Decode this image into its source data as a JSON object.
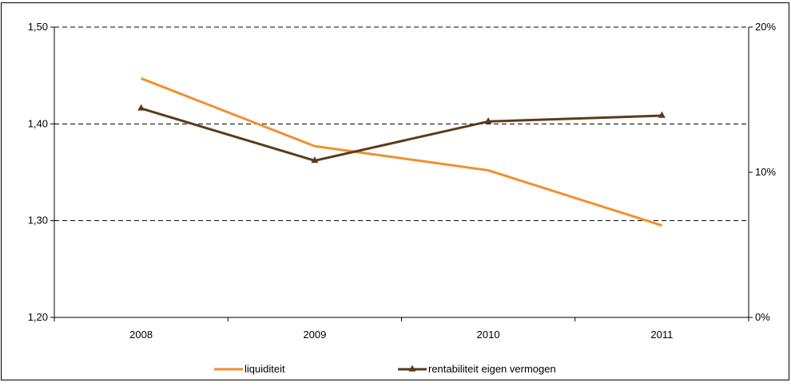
{
  "chart_data": {
    "type": "line",
    "categories": [
      "2008",
      "2009",
      "2010",
      "2011"
    ],
    "series": [
      {
        "name": "liquiditeit",
        "axis": "left",
        "color": "#F0902F",
        "marker": "none",
        "values": [
          1.447,
          1.377,
          1.352,
          1.295
        ]
      },
      {
        "name": "rentabiliteit eigen vermogen",
        "axis": "right",
        "color": "#5C3A1A",
        "marker": "triangle",
        "values": [
          14.4,
          10.8,
          13.5,
          13.9
        ]
      }
    ],
    "y_left": {
      "min": 1.2,
      "max": 1.5,
      "ticks": [
        "1,20",
        "1,30",
        "1,40",
        "1,50"
      ],
      "tick_values": [
        1.2,
        1.3,
        1.4,
        1.5
      ]
    },
    "y_right": {
      "min": 0,
      "max": 20,
      "ticks": [
        "0%",
        "10%",
        "20%"
      ],
      "tick_values": [
        0,
        10,
        20
      ]
    },
    "grid": "horizontal-dashed",
    "legend": "bottom",
    "title": "",
    "xlabel": "",
    "ylabel": ""
  }
}
